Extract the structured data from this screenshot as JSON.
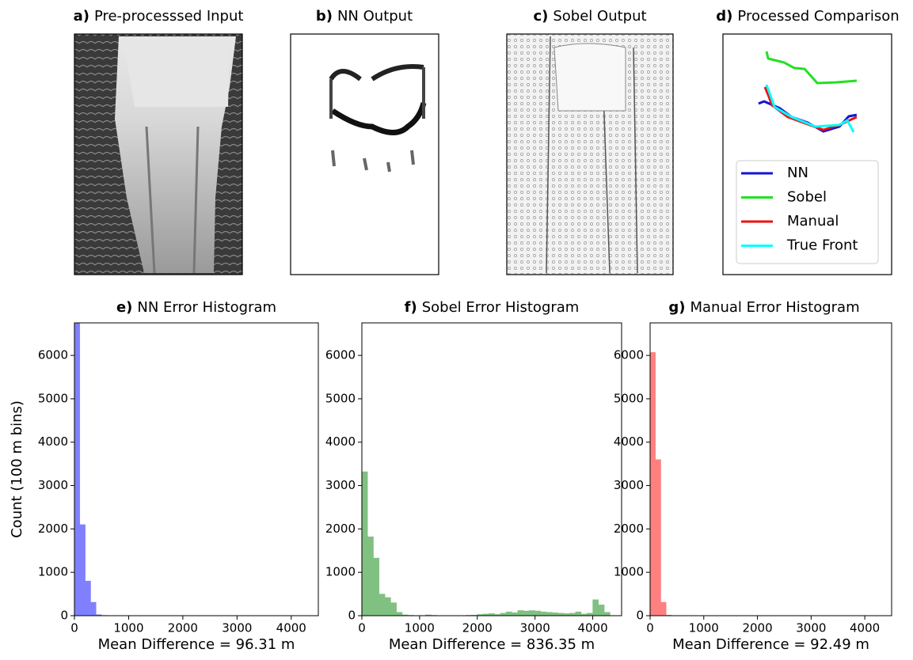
{
  "images": [
    {
      "label": "a)",
      "title": "Pre-processsed Input"
    },
    {
      "label": "b)",
      "title": "NN Output"
    },
    {
      "label": "c)",
      "title": "Sobel Output"
    }
  ],
  "chart_data": [
    {
      "type": "line",
      "label": "d)",
      "title": "Processed Comparison",
      "xlim": [
        0,
        100
      ],
      "ylim": [
        0,
        100
      ],
      "legend": "lower center",
      "series": [
        {
          "name": "NN",
          "color": "#1414d2",
          "x": [
            21.1,
            24.4,
            33.8,
            40.8,
            50.2,
            59.6,
            69.0,
            74.6,
            79.3
          ],
          "values": [
            71.1,
            72.0,
            69.1,
            65.5,
            63.2,
            59.5,
            61.5,
            65.8,
            66.4
          ]
        },
        {
          "name": "Sobel",
          "color": "#22e022",
          "x": [
            25.8,
            26.8,
            36.2,
            42.3,
            48.4,
            52.1,
            55.9,
            66.7,
            79.3
          ],
          "values": [
            92.8,
            89.8,
            88.2,
            85.9,
            85.5,
            82.6,
            79.6,
            79.9,
            80.6
          ]
        },
        {
          "name": "Manual",
          "color": "#ee1111",
          "x": [
            24.9,
            26.8,
            29.1,
            38.5,
            50.2,
            59.6,
            69.0,
            79.3
          ],
          "values": [
            78.0,
            74.7,
            70.4,
            65.5,
            62.5,
            60.2,
            62.2,
            65.5
          ]
        },
        {
          "name": "True Front",
          "color": "#00ffff",
          "x": [
            25.8,
            27.7,
            30.5,
            40.8,
            54.9,
            69.0,
            73.7,
            77.5
          ],
          "values": [
            78.9,
            75.3,
            69.7,
            65.5,
            61.5,
            62.2,
            64.1,
            59.2
          ]
        }
      ]
    },
    {
      "type": "histogram",
      "label": "e)",
      "title": "NN Error Histogram",
      "xlabel": "Mean Difference = 96.31 m",
      "ylabel": "Count (100 m bins)",
      "color": "#8080ff",
      "bins": [
        0,
        100,
        200,
        300,
        400,
        500,
        600,
        700,
        800,
        900,
        1000,
        1100,
        1200,
        1300,
        1400,
        1500,
        1600,
        1700,
        1800,
        1900,
        2000,
        2100,
        2200,
        2300,
        2400,
        2500,
        2600,
        2700,
        2800,
        2900,
        3000,
        3100,
        3200,
        3300,
        3400,
        3500,
        3600,
        3700,
        3800,
        3900,
        4000,
        4100,
        4200,
        4300,
        4400
      ],
      "values": [
        6750,
        2100,
        800,
        310,
        25,
        8,
        0,
        0,
        0,
        0,
        0,
        0,
        0,
        0,
        0,
        0,
        0,
        0,
        0,
        0,
        0,
        0,
        0,
        0,
        0,
        0,
        0,
        0,
        0,
        0,
        0,
        0,
        0,
        0,
        0,
        0,
        0,
        0,
        0,
        0,
        0,
        0,
        0,
        0
      ],
      "xlim": [
        0,
        4500
      ],
      "ylim": [
        0,
        6750
      ],
      "xticks": [
        0,
        1000,
        2000,
        3000,
        4000
      ],
      "yticks": [
        0,
        1000,
        2000,
        3000,
        4000,
        5000,
        6000
      ]
    },
    {
      "type": "histogram",
      "label": "f)",
      "title": "Sobel Error Histogram",
      "xlabel": "Mean Difference = 836.35 m",
      "color": "#80c080",
      "bins": [
        0,
        100,
        200,
        300,
        400,
        500,
        600,
        700,
        800,
        900,
        1000,
        1100,
        1200,
        1300,
        1400,
        1500,
        1600,
        1700,
        1800,
        1900,
        2000,
        2100,
        2200,
        2300,
        2400,
        2500,
        2600,
        2700,
        2800,
        2900,
        3000,
        3100,
        3200,
        3300,
        3400,
        3500,
        3600,
        3700,
        3800,
        3900,
        4000,
        4100,
        4200,
        4300,
        4400
      ],
      "values": [
        3320,
        1820,
        1330,
        500,
        420,
        300,
        80,
        20,
        10,
        5,
        5,
        20,
        10,
        5,
        5,
        5,
        5,
        5,
        10,
        15,
        30,
        40,
        50,
        30,
        60,
        90,
        70,
        120,
        110,
        120,
        110,
        90,
        80,
        70,
        60,
        50,
        60,
        90,
        40,
        60,
        370,
        250,
        80,
        0
      ],
      "xlim": [
        0,
        4500
      ],
      "ylim": [
        0,
        6750
      ],
      "xticks": [
        0,
        1000,
        2000,
        3000,
        4000
      ],
      "yticks": [
        0,
        1000,
        2000,
        3000,
        4000,
        5000,
        6000
      ]
    },
    {
      "type": "histogram",
      "label": "g)",
      "title": "Manual Error Histogram",
      "xlabel": "Mean Difference = 92.49 m",
      "color": "#ff8080",
      "bins": [
        0,
        100,
        200,
        300,
        400,
        500,
        600,
        700,
        800,
        900,
        1000,
        1100,
        1200,
        1300,
        1400,
        1500,
        1600,
        1700,
        1800,
        1900,
        2000,
        2100,
        2200,
        2300,
        2400,
        2500,
        2600,
        2700,
        2800,
        2900,
        3000,
        3100,
        3200,
        3300,
        3400,
        3500,
        3600,
        3700,
        3800,
        3900,
        4000,
        4100,
        4200,
        4300,
        4400
      ],
      "values": [
        6070,
        3600,
        310,
        12,
        0,
        0,
        0,
        0,
        0,
        0,
        0,
        0,
        0,
        0,
        0,
        0,
        0,
        0,
        0,
        0,
        0,
        0,
        0,
        0,
        0,
        0,
        0,
        0,
        0,
        0,
        0,
        0,
        0,
        0,
        0,
        0,
        0,
        0,
        0,
        0,
        0,
        0,
        0,
        0
      ],
      "xlim": [
        0,
        4500
      ],
      "ylim": [
        0,
        6750
      ],
      "xticks": [
        0,
        1000,
        2000,
        3000,
        4000
      ],
      "yticks": [
        0,
        1000,
        2000,
        3000,
        4000,
        5000,
        6000
      ]
    }
  ]
}
